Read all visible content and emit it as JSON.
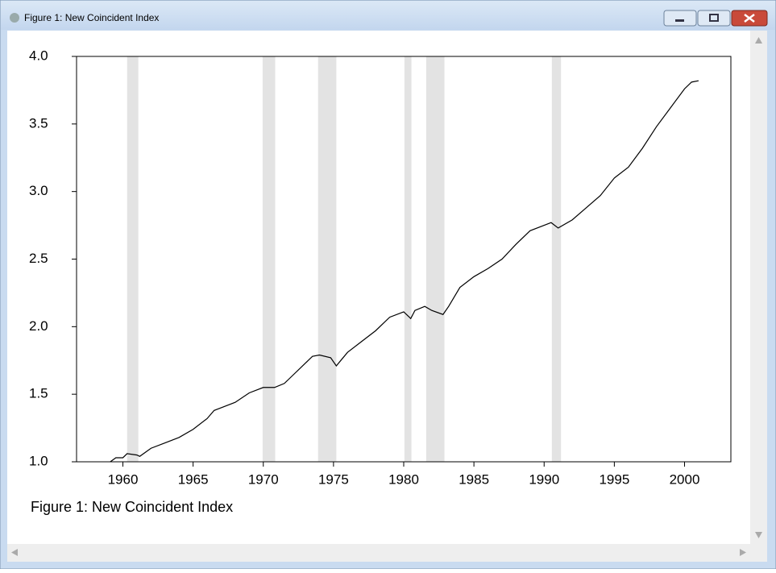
{
  "window": {
    "title": "Figure 1: New Coincident Index"
  },
  "chart_data": {
    "type": "line",
    "caption": "Figure 1: New Coincident Index",
    "x": [
      1959.1,
      1959.5,
      1960.0,
      1960.3,
      1961.0,
      1961.2,
      1962,
      1963,
      1964,
      1965,
      1966,
      1966.5,
      1967,
      1968,
      1969,
      1970,
      1970.8,
      1971.5,
      1972,
      1973,
      1973.5,
      1974,
      1974.8,
      1975.2,
      1975.6,
      1976,
      1977,
      1978,
      1979,
      1980,
      1980.5,
      1980.8,
      1981.5,
      1982,
      1982.8,
      1983.2,
      1984,
      1985,
      1986,
      1987,
      1988,
      1989,
      1990,
      1990.5,
      1991,
      1992,
      1993,
      1994,
      1995,
      1996,
      1997,
      1998,
      1999,
      2000,
      2000.5,
      2001
    ],
    "series": [
      {
        "color": "#000000",
        "values": [
          1.0,
          1.03,
          1.03,
          1.06,
          1.05,
          1.04,
          1.1,
          1.14,
          1.18,
          1.24,
          1.32,
          1.38,
          1.4,
          1.44,
          1.51,
          1.55,
          1.55,
          1.58,
          1.63,
          1.73,
          1.78,
          1.79,
          1.77,
          1.71,
          1.76,
          1.81,
          1.89,
          1.97,
          2.07,
          2.11,
          2.06,
          2.12,
          2.15,
          2.12,
          2.09,
          2.15,
          2.29,
          2.37,
          2.43,
          2.5,
          2.61,
          2.71,
          2.75,
          2.77,
          2.73,
          2.79,
          2.88,
          2.97,
          3.1,
          3.18,
          3.32,
          3.48,
          3.62,
          3.76,
          3.81,
          3.82
        ]
      }
    ],
    "shaded_periods": [
      [
        1960.3,
        1961.1
      ],
      [
        1969.95,
        1970.85
      ],
      [
        1973.9,
        1975.2
      ],
      [
        1980.05,
        1980.55
      ],
      [
        1981.6,
        1982.9
      ],
      [
        1990.55,
        1991.2
      ]
    ],
    "shade_color": "#e3e3e3",
    "xlim": [
      1956.7,
      2003.3
    ],
    "xticks": [
      1960,
      1965,
      1970,
      1975,
      1980,
      1985,
      1990,
      1995,
      2000
    ],
    "ylim": [
      1,
      4
    ],
    "yticks": [
      {
        "value": 1,
        "label": "1.0"
      },
      1.5,
      {
        "value": 2,
        "label": "2.0"
      },
      2.5,
      {
        "value": 3,
        "label": "3.0"
      },
      3.5,
      {
        "value": 4,
        "label": "4.0"
      }
    ]
  }
}
